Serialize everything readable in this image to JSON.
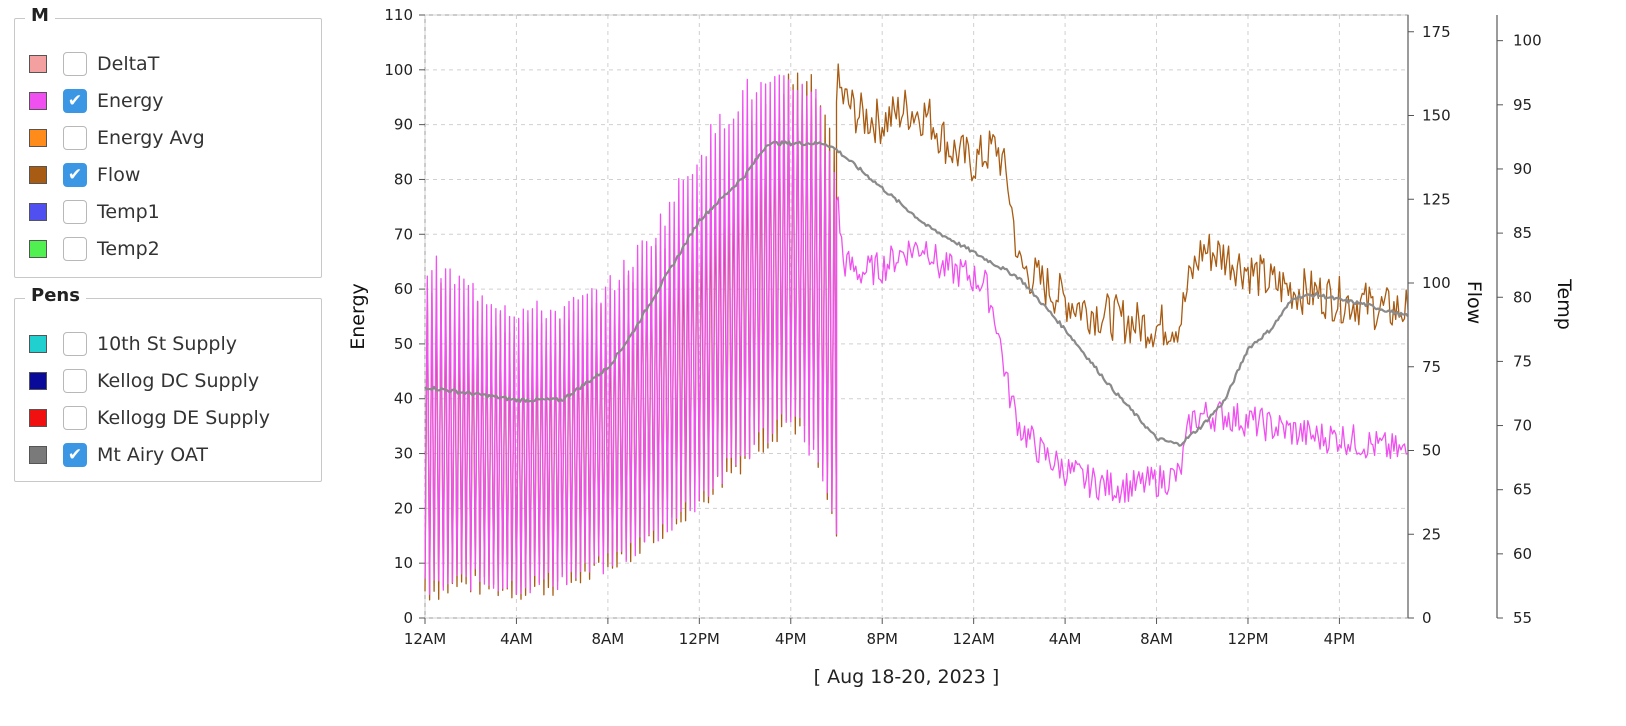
{
  "groups": [
    {
      "title": "M",
      "items": [
        {
          "label": "DeltaT",
          "color": "#f5a0a0",
          "checked": false
        },
        {
          "label": "Energy",
          "color": "#f050f0",
          "checked": true
        },
        {
          "label": "Energy Avg",
          "color": "#ff8c1a",
          "checked": false
        },
        {
          "label": "Flow",
          "color": "#a85b12",
          "checked": true
        },
        {
          "label": "Temp1",
          "color": "#5050f0",
          "checked": false
        },
        {
          "label": "Temp2",
          "color": "#50f050",
          "checked": false
        }
      ]
    },
    {
      "title": "Pens",
      "items": [
        {
          "label": "10th St Supply",
          "color": "#20d0d0",
          "checked": false
        },
        {
          "label": "Kellog DC Supply",
          "color": "#0a0a9a",
          "checked": false
        },
        {
          "label": "Kellogg DE Supply",
          "color": "#f01010",
          "checked": false
        },
        {
          "label": "Mt Airy OAT",
          "color": "#7a7a7a",
          "checked": true
        }
      ]
    }
  ],
  "chart_data": {
    "type": "line",
    "date_range_label": "[ Aug 18-20, 2023 ]",
    "x_tick_labels": [
      "12AM",
      "4AM",
      "8AM",
      "12PM",
      "4PM",
      "8PM",
      "12AM",
      "4AM",
      "8AM",
      "12PM",
      "4PM"
    ],
    "x_unit": "hours since 12AM Aug 18",
    "x_range": [
      0,
      43
    ],
    "axes": {
      "energy": {
        "label": "Energy",
        "range": [
          0,
          110
        ],
        "ticks": [
          0,
          10,
          20,
          30,
          40,
          50,
          60,
          70,
          80,
          90,
          100,
          110
        ]
      },
      "flow": {
        "label": "Flow",
        "range": [
          0,
          180
        ],
        "ticks": [
          0,
          25,
          50,
          75,
          100,
          125,
          150,
          175
        ]
      },
      "temp": {
        "label": "Temp",
        "range": [
          55,
          102
        ],
        "ticks": [
          55,
          60,
          65,
          70,
          75,
          80,
          85,
          90,
          95,
          100
        ]
      }
    },
    "grid": true,
    "series": [
      {
        "name": "Energy",
        "axis": "energy",
        "color": "#f050f0",
        "oscillating_until": 18,
        "envelope_upper": [
          [
            0,
            65
          ],
          [
            2,
            60
          ],
          [
            4,
            56
          ],
          [
            6,
            56
          ],
          [
            8,
            60
          ],
          [
            10,
            70
          ],
          [
            12,
            85
          ],
          [
            14,
            96
          ],
          [
            16,
            97
          ],
          [
            17,
            97
          ],
          [
            18,
            80
          ]
        ],
        "envelope_lower": [
          [
            0,
            5
          ],
          [
            2,
            7
          ],
          [
            4,
            6
          ],
          [
            6,
            7
          ],
          [
            8,
            10
          ],
          [
            10,
            15
          ],
          [
            12,
            22
          ],
          [
            14,
            30
          ],
          [
            16,
            38
          ],
          [
            17,
            30
          ],
          [
            18,
            15
          ]
        ],
        "points": [
          [
            18,
            78
          ],
          [
            18.3,
            65
          ],
          [
            19,
            63
          ],
          [
            20,
            64
          ],
          [
            21,
            67
          ],
          [
            22,
            68
          ],
          [
            22.5,
            64
          ],
          [
            23.5,
            63
          ],
          [
            24.5,
            61
          ],
          [
            25,
            54
          ],
          [
            25.5,
            42
          ],
          [
            26,
            35
          ],
          [
            27,
            30
          ],
          [
            28,
            27
          ],
          [
            29,
            25
          ],
          [
            30,
            24
          ],
          [
            31,
            24
          ],
          [
            32,
            25
          ],
          [
            33,
            26
          ],
          [
            33.5,
            36
          ],
          [
            34,
            37
          ],
          [
            35,
            37
          ],
          [
            36,
            36
          ],
          [
            37,
            35
          ],
          [
            38,
            34
          ],
          [
            39,
            33
          ],
          [
            40,
            33
          ],
          [
            41,
            32
          ],
          [
            42,
            31
          ],
          [
            43,
            30
          ]
        ]
      },
      {
        "name": "Flow",
        "axis": "flow",
        "color": "#a85b12",
        "oscillating_until": 18,
        "envelope_upper": [
          [
            0,
            100
          ],
          [
            4,
            85
          ],
          [
            8,
            92
          ],
          [
            12,
            125
          ],
          [
            16,
            160
          ],
          [
            17,
            158
          ],
          [
            18,
            135
          ]
        ],
        "envelope_lower": [
          [
            0,
            8
          ],
          [
            2,
            10
          ],
          [
            4,
            8
          ],
          [
            6,
            10
          ],
          [
            8,
            15
          ],
          [
            10,
            25
          ],
          [
            12,
            35
          ],
          [
            14,
            48
          ],
          [
            16,
            60
          ],
          [
            17,
            50
          ],
          [
            18,
            25
          ]
        ],
        "points": [
          [
            18,
            160
          ],
          [
            18.3,
            155
          ],
          [
            19,
            150
          ],
          [
            20,
            148
          ],
          [
            21,
            152
          ],
          [
            22,
            150
          ],
          [
            23,
            140
          ],
          [
            24,
            136
          ],
          [
            25,
            141
          ],
          [
            25.5,
            130
          ],
          [
            26,
            105
          ],
          [
            27,
            100
          ],
          [
            28,
            95
          ],
          [
            29,
            92
          ],
          [
            30,
            90
          ],
          [
            31,
            88
          ],
          [
            32,
            87
          ],
          [
            33,
            88
          ],
          [
            33.5,
            102
          ],
          [
            34,
            110
          ],
          [
            35,
            108
          ],
          [
            36,
            104
          ],
          [
            37,
            100
          ],
          [
            38,
            98
          ],
          [
            39,
            97
          ],
          [
            40,
            95
          ],
          [
            41,
            94
          ],
          [
            42,
            92
          ],
          [
            43,
            92
          ]
        ]
      },
      {
        "name": "Mt Airy OAT",
        "axis": "temp",
        "color": "#8a8a8a",
        "oscillating_until": 0,
        "envelope_upper": [],
        "envelope_lower": [],
        "points": [
          [
            0,
            73
          ],
          [
            2,
            72.5
          ],
          [
            4,
            72
          ],
          [
            6,
            72
          ],
          [
            8,
            74.5
          ],
          [
            9,
            77
          ],
          [
            10,
            80
          ],
          [
            12,
            86
          ],
          [
            14,
            89.5
          ],
          [
            15,
            92
          ],
          [
            16,
            92
          ],
          [
            17,
            92
          ],
          [
            17.5,
            92
          ],
          [
            18,
            91.5
          ],
          [
            20,
            88.5
          ],
          [
            22,
            85.5
          ],
          [
            24,
            83.5
          ],
          [
            26,
            81.5
          ],
          [
            28,
            77.5
          ],
          [
            30,
            73
          ],
          [
            32,
            69
          ],
          [
            33,
            68.5
          ],
          [
            34,
            70
          ],
          [
            35,
            72
          ],
          [
            36,
            76
          ],
          [
            37,
            77.5
          ],
          [
            38,
            80
          ],
          [
            39,
            80.2
          ],
          [
            40,
            79.8
          ],
          [
            41,
            79.5
          ],
          [
            42,
            79
          ],
          [
            43,
            78.5
          ]
        ]
      }
    ]
  }
}
